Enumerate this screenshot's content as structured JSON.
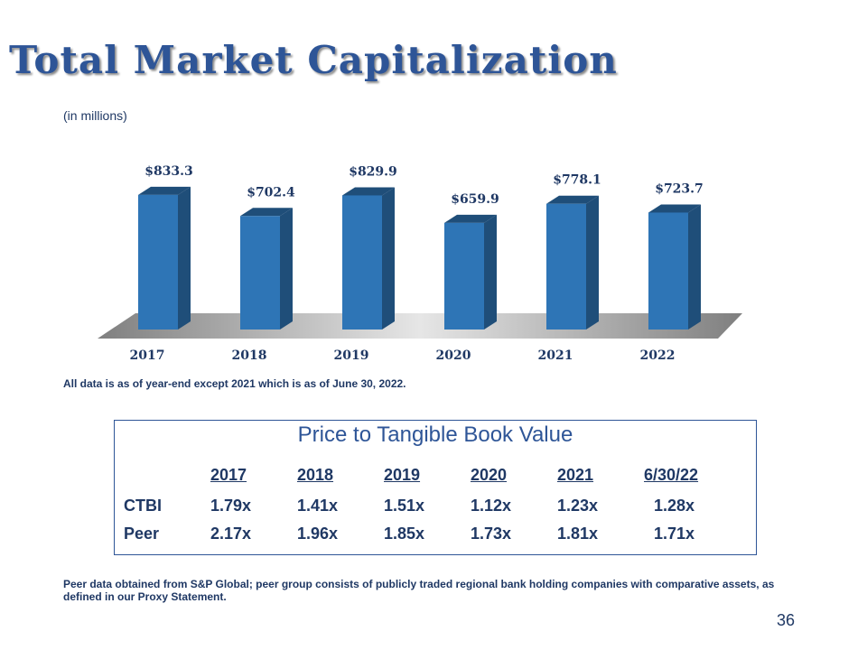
{
  "title": "Total Market Capitalization",
  "units": "(in millions)",
  "chart_data": {
    "type": "bar",
    "categories": [
      "2017",
      "2018",
      "2019",
      "2020",
      "2021",
      "2022"
    ],
    "values": [
      833.3,
      702.4,
      829.9,
      659.9,
      778.1,
      723.7
    ],
    "data_labels": [
      "$833.3",
      "$702.4",
      "$829.9",
      "$659.9",
      "$778.1",
      "$723.7"
    ],
    "ylabel": "",
    "xlabel": "",
    "ylim": [
      0,
      900
    ],
    "grid": false,
    "bar_color": "#2e75b6",
    "bar_side_color": "#1f4e79"
  },
  "note": "All data is as of year-end except 2021 which is as of June 30, 2022.",
  "ptbv": {
    "title": "Price to Tangible Book Value",
    "headers": [
      "2017",
      "2018",
      "2019",
      "2020",
      "2021",
      "6/30/22"
    ],
    "rows": [
      {
        "label": "CTBI",
        "values": [
          "1.79x",
          "1.41x",
          "1.51x",
          "1.12x",
          "1.23x",
          "1.28x"
        ]
      },
      {
        "label": "Peer",
        "values": [
          "2.17x",
          "1.96x",
          "1.85x",
          "1.73x",
          "1.81x",
          "1.71x"
        ]
      }
    ]
  },
  "footnote": "Peer data obtained from S&P Global; peer group consists of publicly traded regional bank holding companies with comparative assets, as defined in our Proxy Statement.",
  "page_number": "36"
}
